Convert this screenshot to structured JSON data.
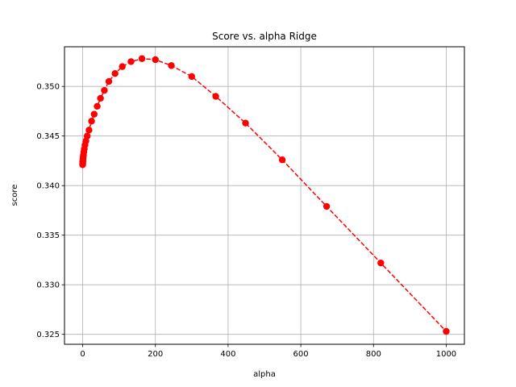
{
  "chart_data": {
    "type": "line",
    "title": "Score vs. alpha Ridge",
    "xlabel": "alpha",
    "ylabel": "score",
    "xlim": [
      -50,
      1050
    ],
    "ylim": [
      0.324,
      0.354
    ],
    "grid": true,
    "xticks": [
      0,
      200,
      400,
      600,
      800,
      1000
    ],
    "xtick_labels": [
      "0",
      "200",
      "400",
      "600",
      "800",
      "1000"
    ],
    "yticks": [
      0.325,
      0.33,
      0.335,
      0.34,
      0.345,
      0.35
    ],
    "ytick_labels": [
      "0.325",
      "0.330",
      "0.335",
      "0.340",
      "0.345",
      "0.350"
    ],
    "series": [
      {
        "color": "#ff0000",
        "linestyle": "dashed",
        "marker": "circle",
        "x": [
          0.001,
          0.01,
          0.1,
          0.3,
          0.6,
          1.0,
          1.5,
          2.2,
          3.2,
          4.5,
          6.3,
          8.9,
          12.5,
          17.5,
          24.4,
          31.6,
          40.0,
          49.0,
          59.6,
          72.0,
          89.0,
          109.0,
          133.0,
          163.0,
          200.0,
          244.0,
          300.0,
          366.0,
          448.0,
          549.0,
          671.0,
          820.0,
          1000.0
        ],
        "y": [
          0.3421,
          0.3422,
          0.3423,
          0.3424,
          0.3425,
          0.3427,
          0.3429,
          0.3431,
          0.3434,
          0.3437,
          0.3441,
          0.3445,
          0.345,
          0.3456,
          0.3465,
          0.3472,
          0.348,
          0.3488,
          0.3496,
          0.3505,
          0.3513,
          0.352,
          0.3525,
          0.3528,
          0.3527,
          0.3521,
          0.351,
          0.349,
          0.3463,
          0.3426,
          0.3379,
          0.3322,
          0.3253
        ]
      }
    ]
  }
}
